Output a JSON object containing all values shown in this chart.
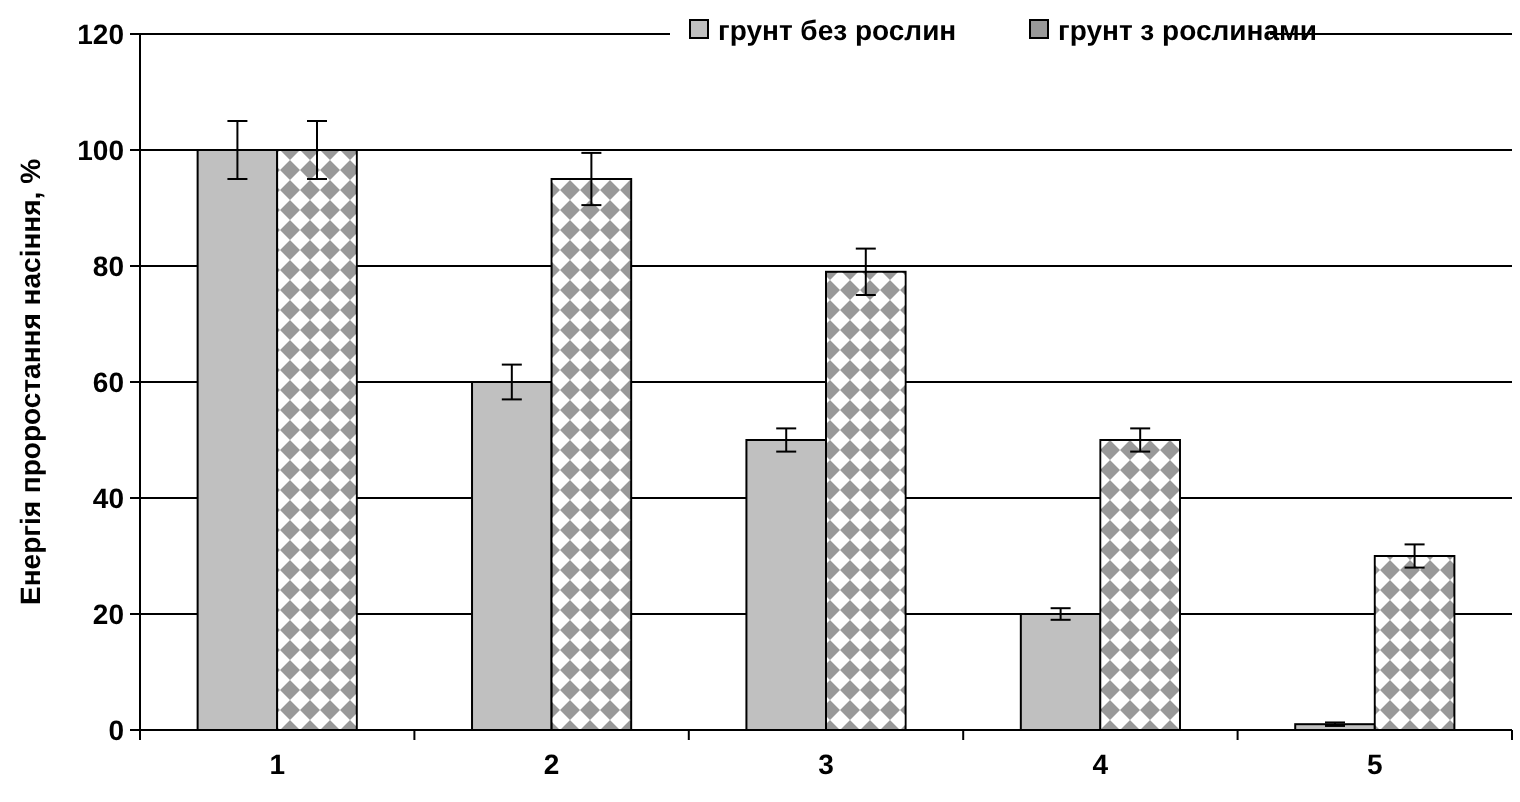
{
  "chart_data": {
    "type": "bar",
    "ylabel": "Енергія проростання насіння, %",
    "categories": [
      "1",
      "2",
      "3",
      "4",
      "5"
    ],
    "series": [
      {
        "name": "грунт без рослин",
        "color": "#c0c0c0",
        "values": [
          100,
          60,
          50,
          20,
          1
        ],
        "errors": [
          5,
          3,
          2,
          1,
          0.3
        ]
      },
      {
        "name": "грунт з рослинами",
        "color": "#999999",
        "values": [
          100,
          95,
          79,
          50,
          30
        ],
        "errors": [
          5,
          4.5,
          4,
          2,
          2
        ]
      }
    ],
    "ylim": [
      0,
      120
    ],
    "yticks": [
      0,
      20,
      40,
      60,
      80,
      100,
      120
    ],
    "grid": "y",
    "legend": "top right"
  }
}
